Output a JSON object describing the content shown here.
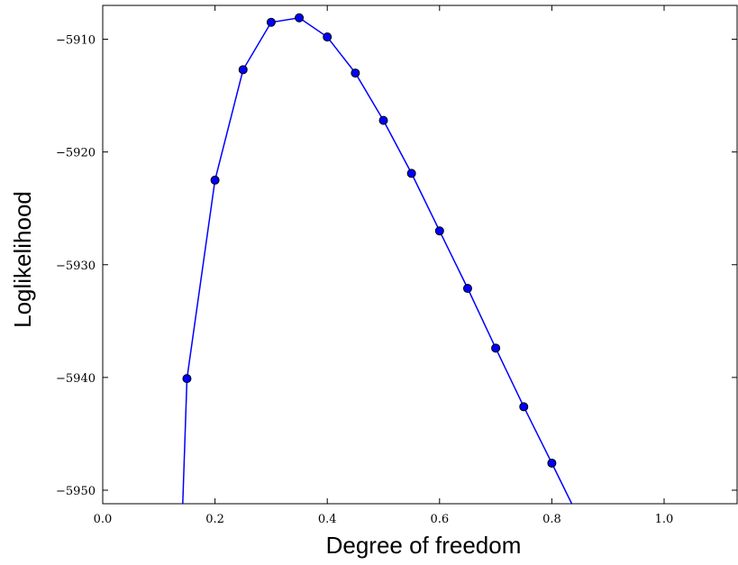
{
  "chart_data": {
    "type": "line",
    "xlabel": "Degree of freedom",
    "ylabel": "Loglikelihood",
    "xlim": [
      0.0,
      1.13
    ],
    "ylim": [
      -5951.2,
      -5907.0
    ],
    "x_ticks": [
      0.0,
      0.2,
      0.4,
      0.6,
      0.8,
      1.0
    ],
    "x_tick_labels": [
      "0.0",
      "0.2",
      "0.4",
      "0.6",
      "0.8",
      "1.0"
    ],
    "y_ticks": [
      -5950,
      -5940,
      -5930,
      -5920,
      -5910
    ],
    "y_tick_labels": [
      "−5950",
      "−5940",
      "−5930",
      "−5920",
      "−5910"
    ],
    "grid": false,
    "colors": {
      "line": "#0000ff",
      "marker_fill": "#0000ff",
      "marker_edge": "#000000"
    },
    "markers": {
      "x": [
        0.15,
        0.2,
        0.25,
        0.3,
        0.35,
        0.4,
        0.45,
        0.5,
        0.55,
        0.6,
        0.65,
        0.7,
        0.75,
        0.8
      ],
      "y": [
        -5940.1,
        -5922.5,
        -5912.7,
        -5908.5,
        -5908.1,
        -5909.8,
        -5913.0,
        -5917.2,
        -5921.9,
        -5927.0,
        -5932.1,
        -5937.4,
        -5942.6,
        -5947.6
      ]
    },
    "curve": {
      "x": [
        0.1425,
        0.15,
        0.2,
        0.25,
        0.3,
        0.35,
        0.4,
        0.45,
        0.5,
        0.55,
        0.6,
        0.65,
        0.7,
        0.75,
        0.8,
        0.8355
      ],
      "y": [
        -5951.2,
        -5940.1,
        -5922.5,
        -5912.7,
        -5908.5,
        -5908.1,
        -5909.8,
        -5913.0,
        -5917.2,
        -5921.9,
        -5927.0,
        -5932.1,
        -5937.4,
        -5942.6,
        -5947.6,
        -5951.2
      ]
    }
  }
}
